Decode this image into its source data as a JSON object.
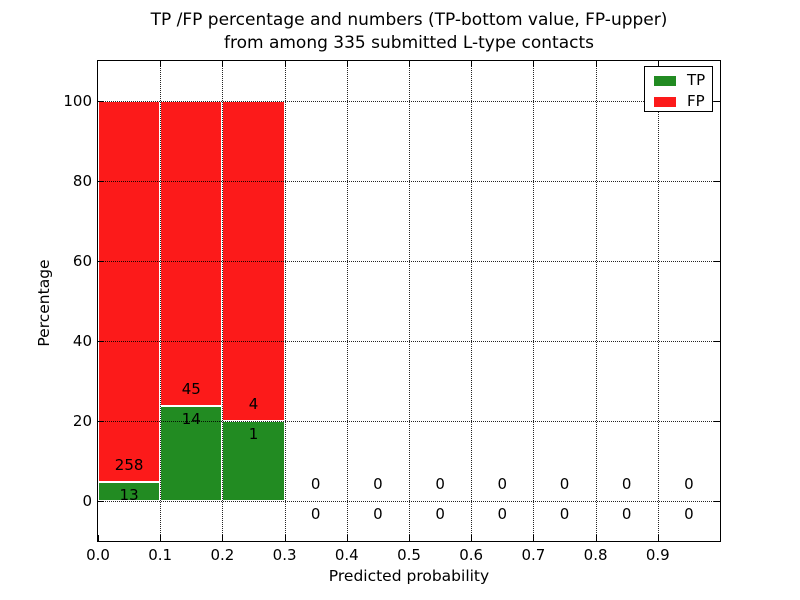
{
  "chart_data": {
    "type": "bar",
    "stacked": true,
    "title_line1": "TP /FP percentage and numbers (TP-bottom value, FP-upper)",
    "title_line2": "from among 335 submitted L-type contacts",
    "xlabel": "Predicted probability",
    "ylabel": "Percentage",
    "xlim": [
      0.0,
      1.0
    ],
    "ylim": [
      -10,
      110
    ],
    "grid": true,
    "xticks": [
      {
        "value": 0.0,
        "label": "0.0"
      },
      {
        "value": 0.1,
        "label": "0.1"
      },
      {
        "value": 0.2,
        "label": "0.2"
      },
      {
        "value": 0.3,
        "label": "0.3"
      },
      {
        "value": 0.4,
        "label": "0.4"
      },
      {
        "value": 0.5,
        "label": "0.5"
      },
      {
        "value": 0.6,
        "label": "0.6"
      },
      {
        "value": 0.7,
        "label": "0.7"
      },
      {
        "value": 0.8,
        "label": "0.8"
      },
      {
        "value": 0.9,
        "label": "0.9"
      }
    ],
    "yticks": [
      {
        "value": 0,
        "label": "0"
      },
      {
        "value": 20,
        "label": "20"
      },
      {
        "value": 40,
        "label": "40"
      },
      {
        "value": 60,
        "label": "60"
      },
      {
        "value": 80,
        "label": "80"
      },
      {
        "value": 100,
        "label": "100"
      }
    ],
    "colors": {
      "tp": "#228b22",
      "fp": "#fc1a1a"
    },
    "legend": {
      "position": "upper right",
      "entries": [
        {
          "label": "TP",
          "color": "#228b22"
        },
        {
          "label": "FP",
          "color": "#fc1a1a"
        }
      ]
    },
    "bins": [
      {
        "range": [
          0.0,
          0.1
        ],
        "tp": 13,
        "fp": 258,
        "tp_pct": 4.8,
        "fp_pct": 95.2
      },
      {
        "range": [
          0.1,
          0.2
        ],
        "tp": 14,
        "fp": 45,
        "tp_pct": 23.7,
        "fp_pct": 76.3
      },
      {
        "range": [
          0.2,
          0.3
        ],
        "tp": 1,
        "fp": 4,
        "tp_pct": 20.0,
        "fp_pct": 80.0
      },
      {
        "range": [
          0.3,
          0.4
        ],
        "tp": 0,
        "fp": 0,
        "tp_pct": 0,
        "fp_pct": 0
      },
      {
        "range": [
          0.4,
          0.5
        ],
        "tp": 0,
        "fp": 0,
        "tp_pct": 0,
        "fp_pct": 0
      },
      {
        "range": [
          0.5,
          0.6
        ],
        "tp": 0,
        "fp": 0,
        "tp_pct": 0,
        "fp_pct": 0
      },
      {
        "range": [
          0.6,
          0.7
        ],
        "tp": 0,
        "fp": 0,
        "tp_pct": 0,
        "fp_pct": 0
      },
      {
        "range": [
          0.7,
          0.8
        ],
        "tp": 0,
        "fp": 0,
        "tp_pct": 0,
        "fp_pct": 0
      },
      {
        "range": [
          0.8,
          0.9
        ],
        "tp": 0,
        "fp": 0,
        "tp_pct": 0,
        "fp_pct": 0
      },
      {
        "range": [
          0.9,
          1.0
        ],
        "tp": 0,
        "fp": 0,
        "tp_pct": 0,
        "fp_pct": 0
      }
    ],
    "total_submitted": 335
  }
}
